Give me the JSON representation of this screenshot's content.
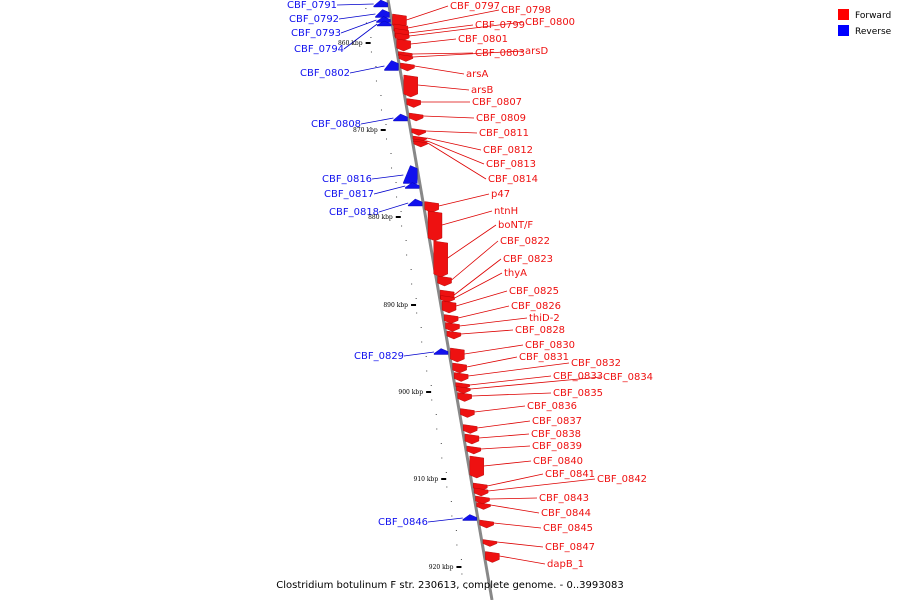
{
  "caption": "Clostridium botulinum F str. 230613, complete genome. - 0..3993083",
  "legend": [
    {
      "label": "Forward",
      "color": "#ff0000"
    },
    {
      "label": "Reverse",
      "color": "#0000ff"
    }
  ],
  "colors": {
    "forward": "#ee1111",
    "reverse": "#1111ee",
    "leader_forward": "#dd0000",
    "leader_reverse": "#0000cc",
    "backbone": "#888888"
  },
  "ticks": [
    "860 kbp",
    "870 kbp",
    "880 kbp",
    "890 kbp",
    "900 kbp",
    "910 kbp",
    "920 kbp"
  ],
  "forward_genes": [
    "CBF_0797",
    "CBF_0798",
    "CBF_0799",
    "CBF_0800",
    "CBF_0801",
    "CBF_0803",
    "arsD",
    "arsA",
    "arsB",
    "CBF_0807",
    "CBF_0809",
    "CBF_0811",
    "CBF_0812",
    "CBF_0813",
    "CBF_0814",
    "p47",
    "ntnH",
    "boNT/F",
    "CBF_0822",
    "CBF_0823",
    "thyA",
    "CBF_0825",
    "CBF_0826",
    "thiD-2",
    "CBF_0828",
    "CBF_0830",
    "CBF_0831",
    "CBF_0832",
    "CBF_0833",
    "CBF_0834",
    "CBF_0835",
    "CBF_0836",
    "CBF_0837",
    "CBF_0838",
    "CBF_0839",
    "CBF_0840",
    "CBF_0841",
    "CBF_0842",
    "CBF_0843",
    "CBF_0844",
    "CBF_0845",
    "CBF_0847",
    "dapB_1"
  ],
  "reverse_genes": [
    "CBF_0791",
    "CBF_0792",
    "CBF_0793",
    "CBF_0794",
    "CBF_0802",
    "CBF_0808",
    "CBF_0816",
    "CBF_0817",
    "CBF_0818",
    "CBF_0829",
    "CBF_0846"
  ]
}
